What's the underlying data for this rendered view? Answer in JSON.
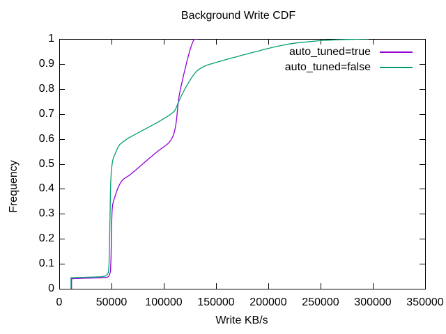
{
  "chart_data": {
    "type": "line",
    "title": "Background Write CDF",
    "xlabel": "Write KB/s",
    "ylabel": "Frequency",
    "xlim": [
      0,
      350000
    ],
    "ylim": [
      0,
      1
    ],
    "grid": false,
    "legend_position": "top-right-inside",
    "x_ticks": [
      0,
      50000,
      100000,
      150000,
      200000,
      250000,
      300000,
      350000
    ],
    "x_tick_labels": [
      "0",
      "50000",
      "100000",
      "150000",
      "200000",
      "250000",
      "300000",
      "350000"
    ],
    "y_ticks": [
      0,
      0.1,
      0.2,
      0.3,
      0.4,
      0.5,
      0.6,
      0.7,
      0.8,
      0.9,
      1
    ],
    "y_tick_labels": [
      "0",
      "0.1",
      "0.2",
      "0.3",
      "0.4",
      "0.5",
      "0.6",
      "0.7",
      "0.8",
      "0.9",
      "1"
    ],
    "colors": {
      "foreground": "#000000",
      "background": "#ffffff"
    },
    "series": [
      {
        "name": "auto_tuned=true",
        "color": "#9400d3",
        "points": [
          [
            11800,
            0
          ],
          [
            11800,
            0.04
          ],
          [
            25000,
            0.042
          ],
          [
            40000,
            0.044
          ],
          [
            46000,
            0.046
          ],
          [
            47200,
            0.05
          ],
          [
            48200,
            0.056
          ],
          [
            49000,
            0.07
          ],
          [
            49500,
            0.12
          ],
          [
            49800,
            0.19
          ],
          [
            50100,
            0.26
          ],
          [
            50500,
            0.31
          ],
          [
            51000,
            0.335
          ],
          [
            52000,
            0.352
          ],
          [
            53200,
            0.368
          ],
          [
            54500,
            0.385
          ],
          [
            56000,
            0.402
          ],
          [
            57500,
            0.416
          ],
          [
            59000,
            0.427
          ],
          [
            60500,
            0.435
          ],
          [
            62000,
            0.441
          ],
          [
            64000,
            0.446
          ],
          [
            65500,
            0.45
          ],
          [
            68000,
            0.457
          ],
          [
            71000,
            0.468
          ],
          [
            74000,
            0.478
          ],
          [
            77000,
            0.489
          ],
          [
            80000,
            0.5
          ],
          [
            83000,
            0.511
          ],
          [
            86000,
            0.522
          ],
          [
            89000,
            0.532
          ],
          [
            92000,
            0.543
          ],
          [
            95000,
            0.553
          ],
          [
            98000,
            0.562
          ],
          [
            101000,
            0.571
          ],
          [
            103500,
            0.579
          ],
          [
            105500,
            0.588
          ],
          [
            107000,
            0.597
          ],
          [
            108500,
            0.608
          ],
          [
            110000,
            0.625
          ],
          [
            111200,
            0.648
          ],
          [
            112200,
            0.675
          ],
          [
            113000,
            0.71
          ],
          [
            113800,
            0.745
          ],
          [
            114800,
            0.775
          ],
          [
            116000,
            0.8
          ],
          [
            117500,
            0.828
          ],
          [
            119000,
            0.856
          ],
          [
            120500,
            0.882
          ],
          [
            122000,
            0.908
          ],
          [
            123500,
            0.932
          ],
          [
            125000,
            0.955
          ],
          [
            126300,
            0.972
          ],
          [
            127500,
            0.986
          ],
          [
            128700,
            0.996
          ],
          [
            129800,
            1
          ],
          [
            132500,
            1
          ]
        ]
      },
      {
        "name": "auto_tuned=false",
        "color": "#009e73",
        "points": [
          [
            11300,
            0
          ],
          [
            11300,
            0.044
          ],
          [
            25000,
            0.046
          ],
          [
            40000,
            0.048
          ],
          [
            44000,
            0.051
          ],
          [
            45700,
            0.056
          ],
          [
            46800,
            0.062
          ],
          [
            47400,
            0.08
          ],
          [
            47800,
            0.12
          ],
          [
            48100,
            0.18
          ],
          [
            48400,
            0.25
          ],
          [
            48700,
            0.32
          ],
          [
            49000,
            0.39
          ],
          [
            49400,
            0.44
          ],
          [
            49900,
            0.47
          ],
          [
            50600,
            0.5
          ],
          [
            51500,
            0.52
          ],
          [
            52500,
            0.532
          ],
          [
            53800,
            0.543
          ],
          [
            55000,
            0.556
          ],
          [
            56500,
            0.568
          ],
          [
            58000,
            0.578
          ],
          [
            60000,
            0.585
          ],
          [
            63000,
            0.594
          ],
          [
            66000,
            0.603
          ],
          [
            70000,
            0.612
          ],
          [
            74000,
            0.621
          ],
          [
            78000,
            0.63
          ],
          [
            82000,
            0.639
          ],
          [
            86000,
            0.648
          ],
          [
            90000,
            0.657
          ],
          [
            94000,
            0.666
          ],
          [
            98000,
            0.676
          ],
          [
            102000,
            0.686
          ],
          [
            105000,
            0.694
          ],
          [
            108000,
            0.703
          ],
          [
            110000,
            0.71
          ],
          [
            111700,
            0.722
          ],
          [
            113300,
            0.74
          ],
          [
            115000,
            0.756
          ],
          [
            117000,
            0.774
          ],
          [
            119000,
            0.79
          ],
          [
            121000,
            0.806
          ],
          [
            123000,
            0.82
          ],
          [
            125000,
            0.834
          ],
          [
            127000,
            0.847
          ],
          [
            129000,
            0.859
          ],
          [
            131000,
            0.869
          ],
          [
            133500,
            0.878
          ],
          [
            136000,
            0.885
          ],
          [
            139000,
            0.891
          ],
          [
            142000,
            0.896
          ],
          [
            146000,
            0.901
          ],
          [
            150000,
            0.906
          ],
          [
            155000,
            0.912
          ],
          [
            160000,
            0.918
          ],
          [
            165000,
            0.924
          ],
          [
            170000,
            0.929
          ],
          [
            175000,
            0.935
          ],
          [
            180000,
            0.94
          ],
          [
            185000,
            0.946
          ],
          [
            190000,
            0.951
          ],
          [
            195000,
            0.957
          ],
          [
            200000,
            0.962
          ],
          [
            205000,
            0.967
          ],
          [
            210000,
            0.972
          ],
          [
            215000,
            0.976
          ],
          [
            220000,
            0.98
          ],
          [
            227000,
            0.984
          ],
          [
            234000,
            0.987
          ],
          [
            241000,
            0.99
          ],
          [
            249000,
            0.993
          ],
          [
            257000,
            0.995
          ],
          [
            266000,
            0.997
          ],
          [
            276000,
            0.998
          ],
          [
            285000,
            0.999
          ],
          [
            290000,
            1
          ],
          [
            296000,
            1
          ]
        ]
      }
    ]
  }
}
